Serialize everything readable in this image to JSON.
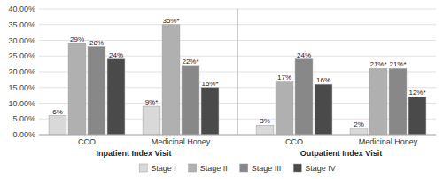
{
  "chart_data": {
    "type": "bar",
    "categories": [
      "CCO",
      "Medicinal Honey",
      "CCO",
      "Medicinal Honey"
    ],
    "annotations": [
      "Inpatient Index Visit",
      "Outpatient Index Visit"
    ],
    "series": [
      {
        "name": "Stage I",
        "color": "#d9d9d9",
        "values": [
          6,
          9,
          3,
          2
        ],
        "value_labels": [
          "6%",
          "9%*",
          "3%",
          "2%"
        ]
      },
      {
        "name": "Stage II",
        "color": "#b0b0b0",
        "values": [
          29,
          35,
          17,
          21
        ],
        "value_labels": [
          "29%",
          "35%*",
          "17%",
          "21%*"
        ]
      },
      {
        "name": "Stage III",
        "color": "#888888",
        "values": [
          28,
          22,
          24,
          21
        ],
        "value_labels": [
          "28%",
          "22%*",
          "24%",
          "21%*"
        ]
      },
      {
        "name": "Stage IV",
        "color": "#4a4a4a",
        "values": [
          24,
          15,
          16,
          12
        ],
        "value_labels": [
          "24%",
          "15%*",
          "16%",
          "12%*"
        ]
      }
    ],
    "ylim": [
      0,
      40
    ],
    "yticks": [
      {
        "value": 0,
        "label": "0.00%"
      },
      {
        "value": 5,
        "label": "5.00%"
      },
      {
        "value": 10,
        "label": "10.00%"
      },
      {
        "value": 15,
        "label": "15.00%"
      },
      {
        "value": 20,
        "label": "20.00%"
      },
      {
        "value": 25,
        "label": "25.00%"
      },
      {
        "value": 30,
        "label": "30.00%"
      },
      {
        "value": 35,
        "label": "35.00%"
      },
      {
        "value": 40,
        "label": "40.00%"
      }
    ],
    "grid": true,
    "data_labels": true,
    "legend": "bottom"
  }
}
